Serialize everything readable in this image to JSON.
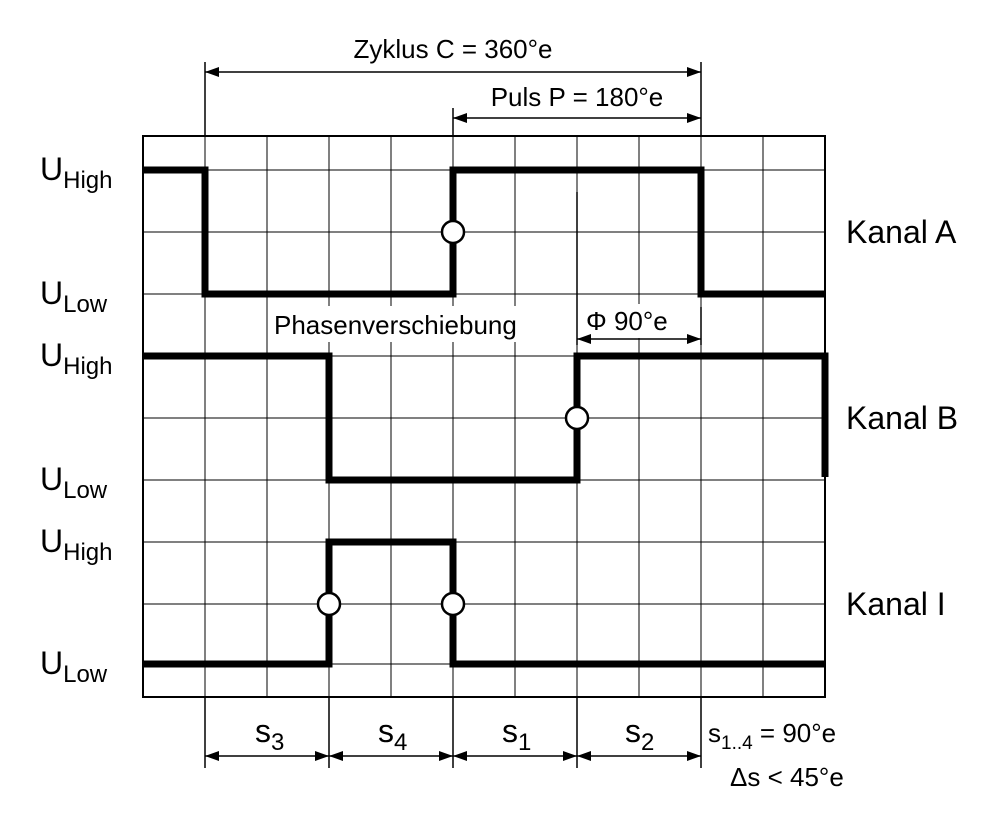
{
  "levels": {
    "high": {
      "main": "U",
      "sub": "High"
    },
    "low": {
      "main": "U",
      "sub": "Low"
    }
  },
  "channels": [
    {
      "name": "Kanal A"
    },
    {
      "name": "Kanal B"
    },
    {
      "name": "Kanal I"
    }
  ],
  "annotations": {
    "cycle": "Zyklus C = 360°e",
    "pulse": "Puls P = 180°e",
    "phase_shift": "Phasenverschiebung",
    "phi": "Φ 90°e",
    "step_formula_main": "s",
    "step_formula_sub": "1..4",
    "step_formula_rest": " = 90°e",
    "tolerance": "Δs < 45°e"
  },
  "steps": [
    {
      "main": "s",
      "sub": "3"
    },
    {
      "main": "s",
      "sub": "4"
    },
    {
      "main": "s",
      "sub": "1"
    },
    {
      "main": "s",
      "sub": "2"
    }
  ]
}
